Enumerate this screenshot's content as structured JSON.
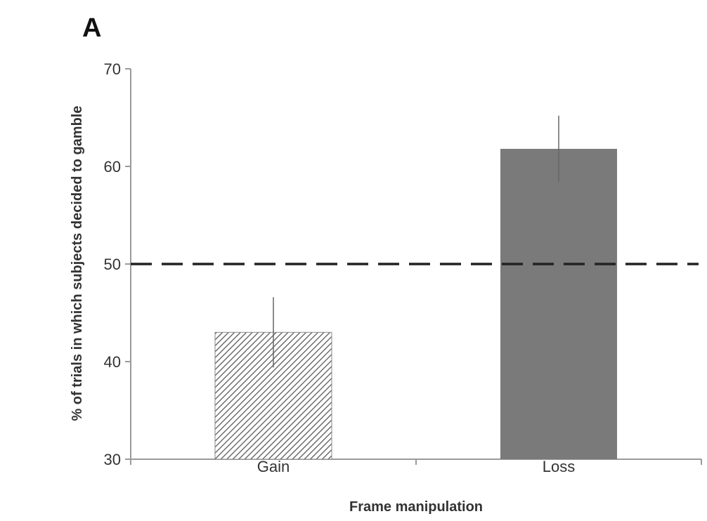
{
  "panel_label": "A",
  "colors": {
    "loss_bar": "#7a7a7a",
    "gain_hatch": "#5a5a5a",
    "axis": "#9a9a9a",
    "error_bar": "#666666",
    "reference_line": "#222222"
  },
  "chart_data": {
    "type": "bar",
    "categories": [
      "Gain",
      "Loss"
    ],
    "values": [
      43,
      61.8
    ],
    "error": [
      3.6,
      3.4
    ],
    "bar_fill": [
      "hatched",
      "solid"
    ],
    "xlabel": "Frame manipulation",
    "ylabel": "% of trials in which subjects decided to gamble",
    "ylim": [
      30,
      70
    ],
    "yticks": [
      30,
      40,
      50,
      60,
      70
    ],
    "reference_line": {
      "y": 50,
      "style": "dashed"
    },
    "grid": false
  }
}
